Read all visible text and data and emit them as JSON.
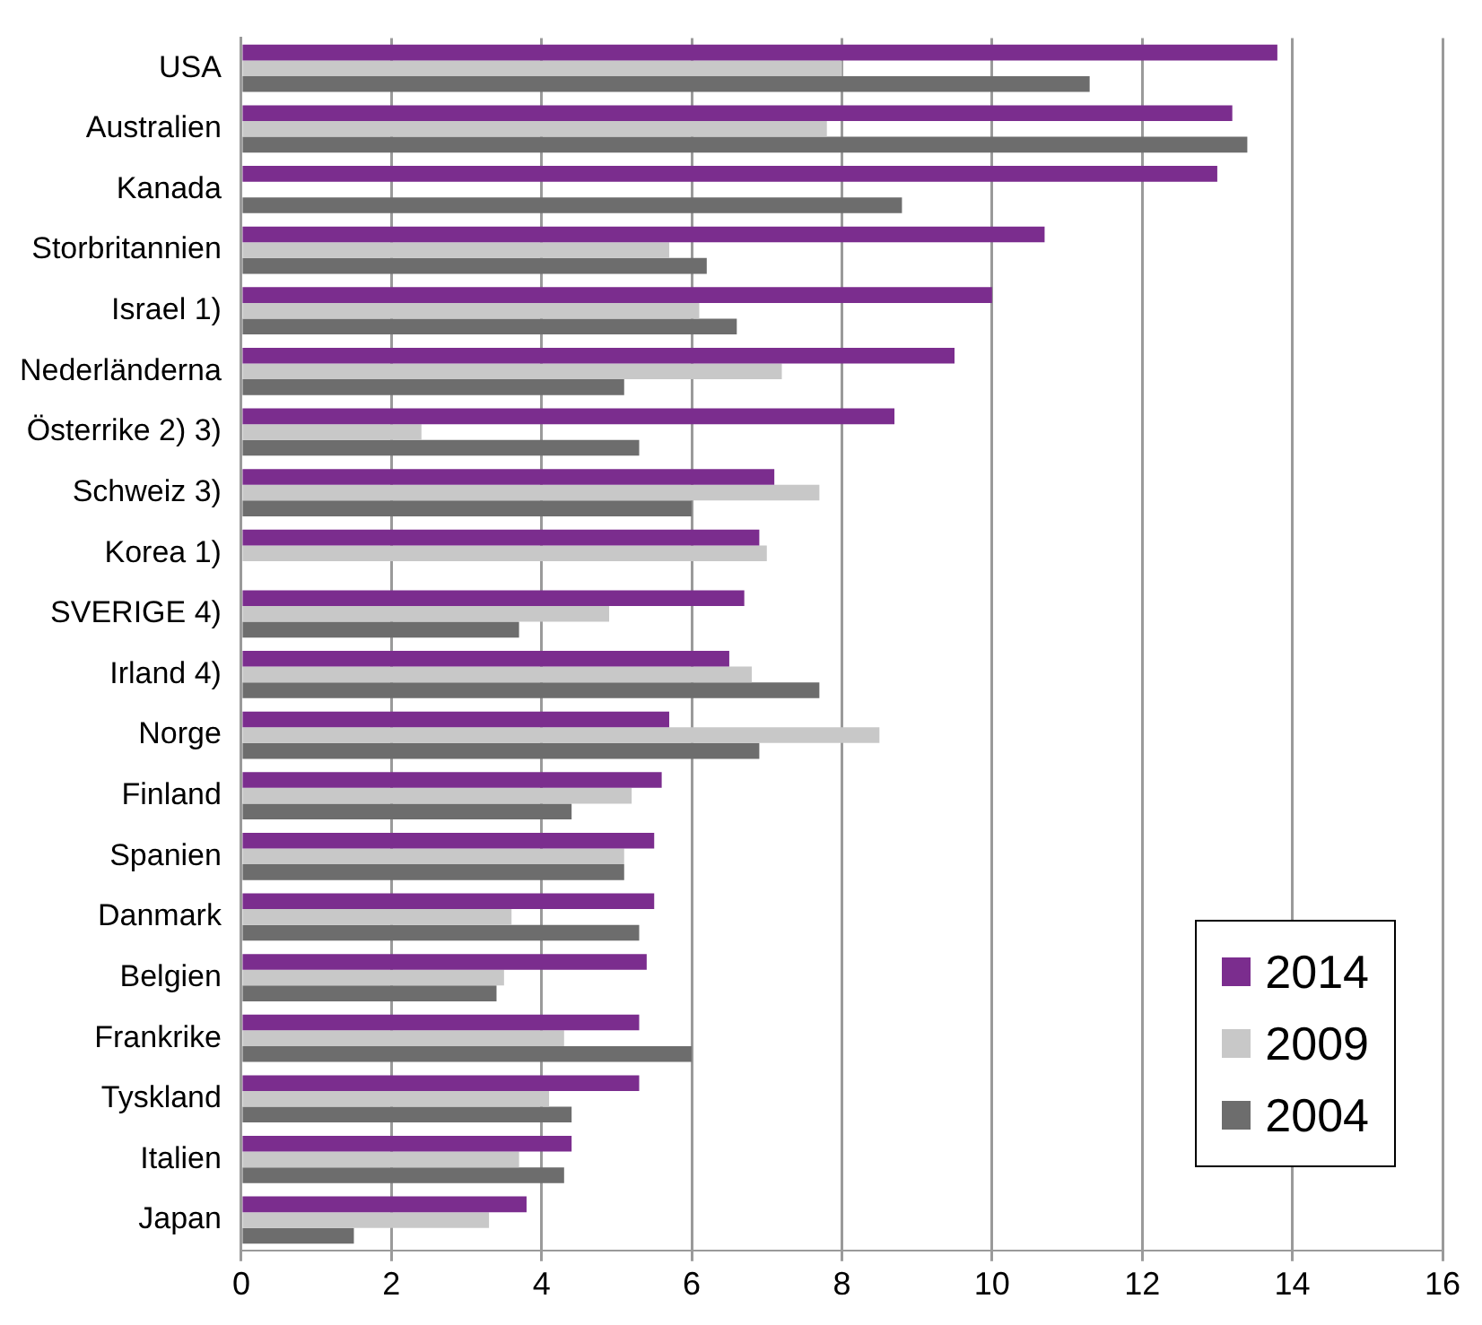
{
  "chart_data": {
    "type": "bar",
    "orientation": "horizontal",
    "categories": [
      "USA",
      "Australien",
      "Kanada",
      "Storbritannien",
      "Israel 1)",
      "Nederländerna",
      "Österrike 2) 3)",
      "Schweiz 3)",
      "Korea 1)",
      "SVERIGE 4)",
      "Irland 4)",
      "Norge",
      "Finland",
      "Spanien",
      "Danmark",
      "Belgien",
      "Frankrike",
      "Tyskland",
      "Italien",
      "Japan"
    ],
    "series": [
      {
        "name": "2014",
        "color": "#7b2d8e",
        "values": [
          13.8,
          13.2,
          13.0,
          10.7,
          10.0,
          9.5,
          8.7,
          7.1,
          6.9,
          6.7,
          6.5,
          5.7,
          5.6,
          5.5,
          5.5,
          5.4,
          5.3,
          5.3,
          4.4,
          3.8
        ]
      },
      {
        "name": "2009",
        "color": "#c8c8c8",
        "values": [
          8.0,
          7.8,
          null,
          5.7,
          6.1,
          7.2,
          2.4,
          7.7,
          7.0,
          4.9,
          6.8,
          8.5,
          5.2,
          5.1,
          3.6,
          3.5,
          4.3,
          4.1,
          3.7,
          3.3
        ]
      },
      {
        "name": "2004",
        "color": "#6d6d6d",
        "values": [
          11.3,
          13.4,
          8.8,
          6.2,
          6.6,
          5.1,
          5.3,
          6.0,
          null,
          3.7,
          7.7,
          6.9,
          4.4,
          5.1,
          5.3,
          3.4,
          6.0,
          4.4,
          4.3,
          1.5
        ]
      }
    ],
    "xlim": [
      0,
      16
    ],
    "xticks": [
      0,
      2,
      4,
      6,
      8,
      10,
      12,
      14,
      16
    ],
    "grid": "x",
    "legend": "bottom right"
  }
}
